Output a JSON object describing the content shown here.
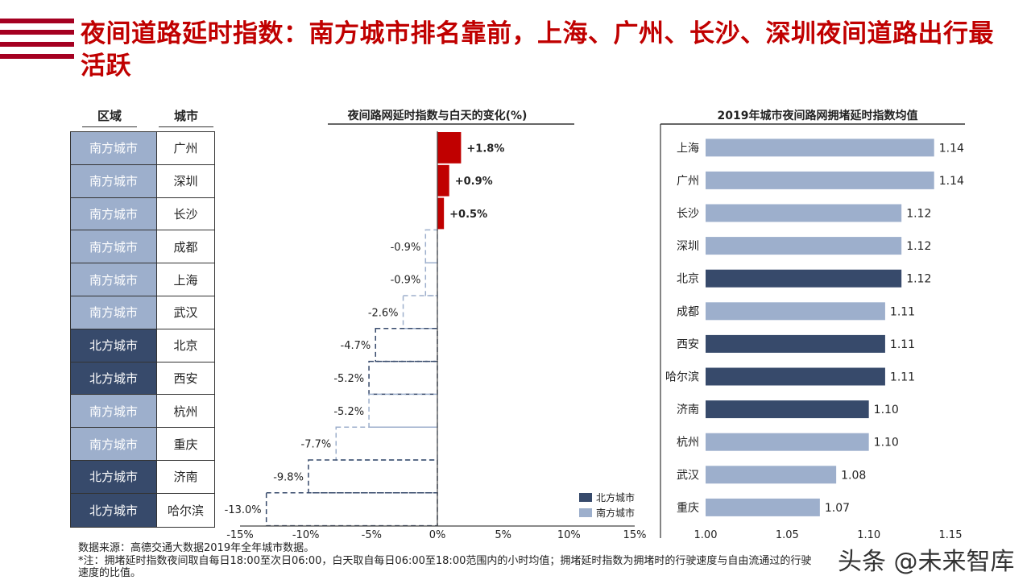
{
  "title": "夜间道路延时指数：南方城市排名靠前，上海、广州、长沙、深圳夜间道路出行最活跃",
  "table": {
    "headers": [
      "区域",
      "城市"
    ],
    "rows": [
      [
        "南方城市",
        "广州"
      ],
      [
        "南方城市",
        "深圳"
      ],
      [
        "南方城市",
        "长沙"
      ],
      [
        "南方城市",
        "成都"
      ],
      [
        "南方城市",
        "上海"
      ],
      [
        "南方城市",
        "武汉"
      ],
      [
        "北方城市",
        "北京"
      ],
      [
        "北方城市",
        "西安"
      ],
      [
        "南方城市",
        "杭州"
      ],
      [
        "南方城市",
        "重庆"
      ],
      [
        "北方城市",
        "济南"
      ],
      [
        "北方城市",
        "哈尔滨"
      ]
    ]
  },
  "colors": {
    "north": "#374a6b",
    "south": "#9dafcc",
    "positive": "#c00000",
    "title": "#c00000"
  },
  "chart_data": [
    {
      "type": "bar",
      "orientation": "horizontal",
      "title": "夜间路网延时指数与白天的变化(%)",
      "categories": [
        "广州",
        "深圳",
        "长沙",
        "成都",
        "上海",
        "武汉",
        "北京",
        "西安",
        "杭州",
        "重庆",
        "济南",
        "哈尔滨"
      ],
      "values": [
        1.8,
        0.9,
        0.5,
        -0.9,
        -0.9,
        -2.6,
        -4.7,
        -5.2,
        -5.2,
        -7.7,
        -9.8,
        -13.0
      ],
      "labels": [
        "+1.8%",
        "+0.9%",
        "+0.5%",
        "-0.9%",
        "-0.9%",
        "-2.6%",
        "-4.7%",
        "-5.2%",
        "-5.2%",
        "-7.7%",
        "-9.8%",
        "-13.0%"
      ],
      "regions": [
        "south",
        "south",
        "south",
        "south",
        "south",
        "south",
        "north",
        "north",
        "south",
        "south",
        "north",
        "north"
      ],
      "xlim": [
        -15,
        15
      ],
      "ticks": [
        "-15%",
        "-10%",
        "-5%",
        "0%",
        "5%",
        "10%",
        "15%"
      ],
      "legend": {
        "placement": "bottom-right",
        "items": [
          {
            "key": "north",
            "label": "北方城市"
          },
          {
            "key": "south",
            "label": "南方城市"
          }
        ]
      }
    },
    {
      "type": "bar",
      "orientation": "horizontal",
      "title": "2019年城市夜间路网拥堵延时指数均值",
      "categories": [
        "上海",
        "广州",
        "长沙",
        "深圳",
        "北京",
        "成都",
        "西安",
        "哈尔滨",
        "济南",
        "杭州",
        "武汉",
        "重庆"
      ],
      "values": [
        1.14,
        1.14,
        1.12,
        1.12,
        1.12,
        1.11,
        1.11,
        1.11,
        1.1,
        1.1,
        1.08,
        1.07
      ],
      "labels": [
        "1.14",
        "1.14",
        "1.12",
        "1.12",
        "1.12",
        "1.11",
        "1.11",
        "1.11",
        "1.10",
        "1.10",
        "1.08",
        "1.07"
      ],
      "regions": [
        "south",
        "south",
        "south",
        "south",
        "north",
        "south",
        "north",
        "north",
        "north",
        "south",
        "south",
        "south"
      ],
      "xlim": [
        1.0,
        1.15
      ],
      "ticks": [
        "1.00",
        "1.05",
        "1.10",
        "1.15"
      ]
    }
  ],
  "footer": {
    "source": "数据来源：高德交通大数据2019年全年城市数据。",
    "note": "*注：拥堵延时指数夜间取自每日18:00至次日06:00，白天取自每日06:00至18:00范围内的小时均值；拥堵延时指数为拥堵时的行驶速度与自由流通过的行驶速度的比值。"
  },
  "watermark": "头条 @未来智库"
}
